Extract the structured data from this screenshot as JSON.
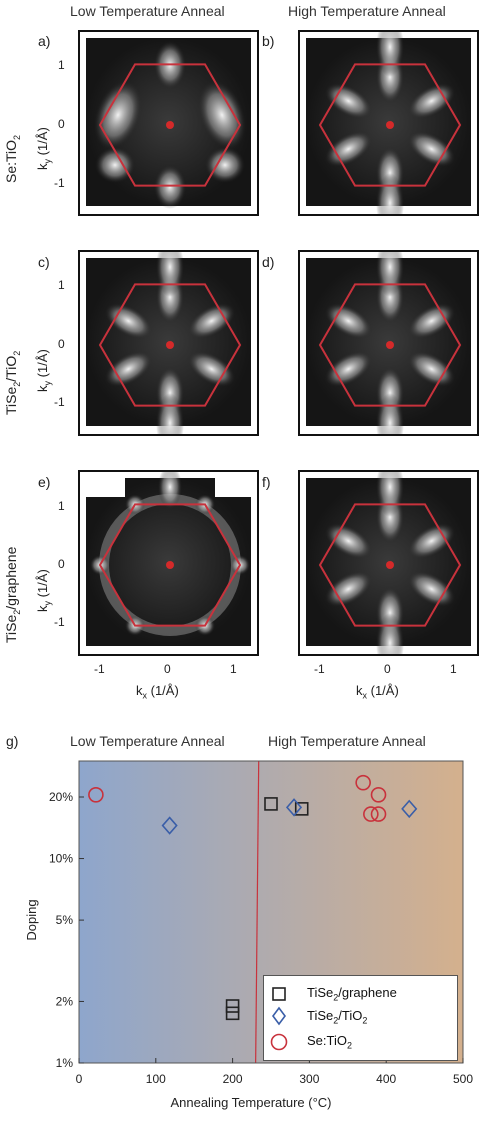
{
  "column_titles": {
    "low": "Low Temperature Anneal",
    "high": "High Temperature Anneal"
  },
  "row_labels": [
    {
      "main": "Se:TiO",
      "sub": "2",
      "tail": ""
    },
    {
      "main": "TiSe",
      "sub": "2",
      "tail": "/TiO",
      "sub2": "2"
    },
    {
      "main": "TiSe",
      "sub": "2",
      "tail": "/graphene",
      "sub2": ""
    }
  ],
  "panels": [
    {
      "label": "a)",
      "pattern": "lobes"
    },
    {
      "label": "b)",
      "pattern": "sixfold"
    },
    {
      "label": "c)",
      "pattern": "sixfold"
    },
    {
      "label": "d)",
      "pattern": "sixfold"
    },
    {
      "label": "e)",
      "pattern": "ring"
    },
    {
      "label": "f)",
      "pattern": "sixfold"
    }
  ],
  "ky_axis": {
    "label_main": "k",
    "label_sub": "y",
    "label_tail": " (1/Å)",
    "ticks": [
      "1",
      "0",
      "-1"
    ]
  },
  "kx_axis": {
    "label_main": "k",
    "label_sub": "x",
    "label_tail": " (1/Å)",
    "ticks": [
      "-1",
      "0",
      "1"
    ]
  },
  "hexagon_color": "#c8323c",
  "center_dot_color": "#d42a2a",
  "chart_data": {
    "type": "scatter",
    "panel_label": "g)",
    "region_labels": {
      "low": "Low Temperature Anneal",
      "high": "High Temperature Anneal"
    },
    "xlabel": "Annealing Temperature (°C)",
    "ylabel": "Doping",
    "xlim": [
      0,
      500
    ],
    "ylim_percent": [
      1,
      30
    ],
    "y_scale": "log",
    "x_ticks": [
      0,
      100,
      200,
      300,
      400,
      500
    ],
    "y_ticks": [
      "1%",
      "2%",
      "5%",
      "10%",
      "20%"
    ],
    "y_tick_values": [
      1,
      2,
      5,
      10,
      20
    ],
    "divider_x": 230,
    "gradient": {
      "left": "#8ea6cc",
      "right": "#d4b08d"
    },
    "legend_position": "bottom-right",
    "series": [
      {
        "name": "TiSe2/graphene",
        "label_main": "TiSe",
        "label_sub": "2",
        "label_tail": "/graphene",
        "marker": "square",
        "color": "#222222",
        "points": [
          [
            250,
            18.5
          ],
          [
            290,
            17.5
          ],
          [
            200,
            1.9
          ],
          [
            200,
            1.75
          ]
        ]
      },
      {
        "name": "TiSe2/TiO2",
        "label_main": "TiSe",
        "label_sub": "2",
        "label_tail": "/TiO",
        "label_sub2": "2",
        "marker": "diamond",
        "color": "#3a5ea8",
        "points": [
          [
            118,
            14.5
          ],
          [
            280,
            17.8
          ],
          [
            430,
            17.5
          ]
        ]
      },
      {
        "name": "Se:TiO2",
        "label_main": "Se:TiO",
        "label_sub": "2",
        "label_tail": "",
        "marker": "circle",
        "color": "#c8323c",
        "points": [
          [
            22,
            20.5
          ],
          [
            370,
            23.5
          ],
          [
            390,
            20.5
          ],
          [
            380,
            16.5
          ],
          [
            390,
            16.5
          ]
        ]
      }
    ]
  }
}
